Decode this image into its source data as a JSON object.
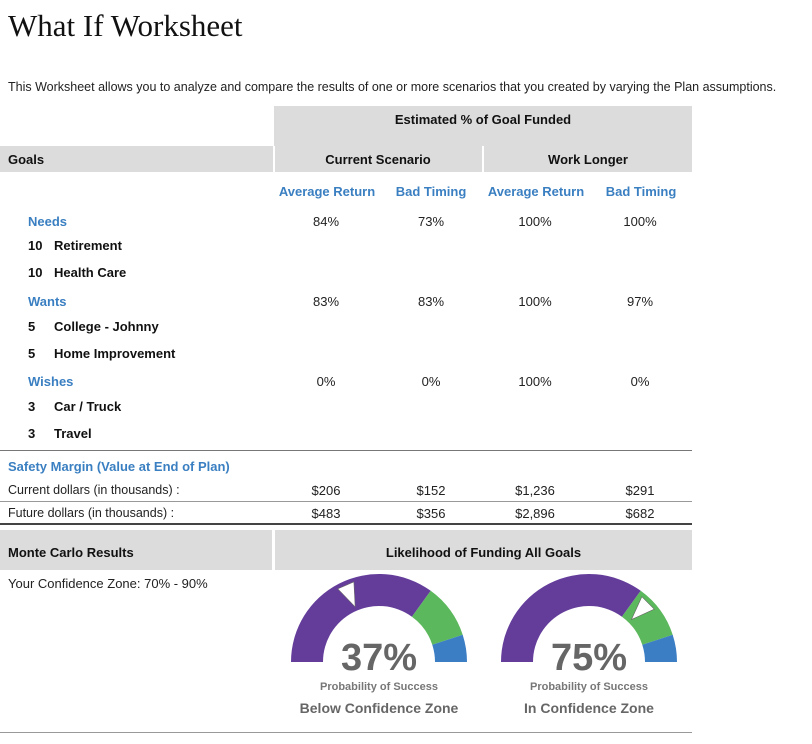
{
  "title": "What If Worksheet",
  "intro": "This Worksheet allows you to analyze and compare the results of one or more scenarios that you created by varying the Plan assumptions.",
  "table": {
    "top_header": "Estimated % of Goal Funded",
    "goals_label": "Goals",
    "scenarios": [
      "Current Scenario",
      "Work Longer"
    ],
    "subheaders": [
      "Average Return",
      "Bad Timing",
      "Average Return",
      "Bad Timing"
    ],
    "categories": [
      {
        "name": "Needs",
        "values": [
          "84%",
          "73%",
          "100%",
          "100%"
        ],
        "goals": [
          {
            "priority": "10",
            "name": "Retirement"
          },
          {
            "priority": "10",
            "name": "Health Care"
          }
        ]
      },
      {
        "name": "Wants",
        "values": [
          "83%",
          "83%",
          "100%",
          "97%"
        ],
        "goals": [
          {
            "priority": "5",
            "name": "College - Johnny"
          },
          {
            "priority": "5",
            "name": "Home Improvement"
          }
        ]
      },
      {
        "name": "Wishes",
        "values": [
          "0%",
          "0%",
          "100%",
          "0%"
        ],
        "goals": [
          {
            "priority": "3",
            "name": "Car / Truck"
          },
          {
            "priority": "3",
            "name": "Travel"
          }
        ]
      }
    ]
  },
  "safety_margin": {
    "title": "Safety Margin (Value at End of Plan)",
    "rows": [
      {
        "label": "Current dollars (in thousands) :",
        "values": [
          "$206",
          "$152",
          "$1,236",
          "$291"
        ]
      },
      {
        "label": "Future dollars (in thousands) :",
        "values": [
          "$483",
          "$356",
          "$2,896",
          "$682"
        ]
      }
    ]
  },
  "monte_carlo": {
    "title": "Monte Carlo Results",
    "header": "Likelihood of Funding All Goals",
    "confidence_zone": "Your Confidence Zone: 70% - 90%",
    "gauges": [
      {
        "value": 37,
        "percent_label": "37%",
        "sub_label": "Probability of Success",
        "zone_label": "Below Confidence Zone"
      },
      {
        "value": 75,
        "percent_label": "75%",
        "sub_label": "Probability of Success",
        "zone_label": "In Confidence Zone"
      }
    ],
    "colors": {
      "below": "#643d9b",
      "in_zone": "#5cb85c",
      "above": "#3b7ec4",
      "pointer": "#ffffff"
    }
  }
}
